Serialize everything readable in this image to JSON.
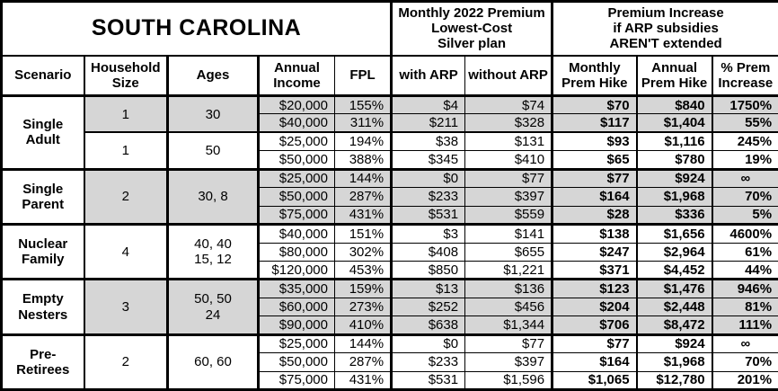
{
  "title": "SOUTH CAROLINA",
  "header_groups": {
    "premium": "Monthly 2022 Premium\nLowest-Cost\nSilver plan",
    "increase": "Premium Increase\nif ARP subsidies\nAREN'T extended"
  },
  "columns": [
    "Scenario",
    "Household\nSize",
    "Ages",
    "Annual\nIncome",
    "FPL",
    "with ARP",
    "without ARP",
    "Monthly\nPrem Hike",
    "Annual\nPrem Hike",
    "% Prem\nIncrease"
  ],
  "colors": {
    "shaded_row": "#d6d6d6",
    "border": "#000000",
    "background": "#ffffff"
  },
  "scenarios": [
    {
      "name": "Single\nAdult",
      "subgroups": [
        {
          "household_size": "1",
          "ages": "30",
          "shaded": true,
          "rows": [
            {
              "income": "$20,000",
              "fpl": "155%",
              "with_arp": "$4",
              "without_arp": "$74",
              "monthly_hike": "$70",
              "annual_hike": "$840",
              "pct_increase": "1750%"
            },
            {
              "income": "$40,000",
              "fpl": "311%",
              "with_arp": "$211",
              "without_arp": "$328",
              "monthly_hike": "$117",
              "annual_hike": "$1,404",
              "pct_increase": "55%"
            }
          ]
        },
        {
          "household_size": "1",
          "ages": "50",
          "shaded": false,
          "rows": [
            {
              "income": "$25,000",
              "fpl": "194%",
              "with_arp": "$38",
              "without_arp": "$131",
              "monthly_hike": "$93",
              "annual_hike": "$1,116",
              "pct_increase": "245%"
            },
            {
              "income": "$50,000",
              "fpl": "388%",
              "with_arp": "$345",
              "without_arp": "$410",
              "monthly_hike": "$65",
              "annual_hike": "$780",
              "pct_increase": "19%"
            }
          ]
        }
      ]
    },
    {
      "name": "Single\nParent",
      "subgroups": [
        {
          "household_size": "2",
          "ages": "30, 8",
          "shaded": true,
          "rows": [
            {
              "income": "$25,000",
              "fpl": "144%",
              "with_arp": "$0",
              "without_arp": "$77",
              "monthly_hike": "$77",
              "annual_hike": "$924",
              "pct_increase": "∞"
            },
            {
              "income": "$50,000",
              "fpl": "287%",
              "with_arp": "$233",
              "without_arp": "$397",
              "monthly_hike": "$164",
              "annual_hike": "$1,968",
              "pct_increase": "70%"
            },
            {
              "income": "$75,000",
              "fpl": "431%",
              "with_arp": "$531",
              "without_arp": "$559",
              "monthly_hike": "$28",
              "annual_hike": "$336",
              "pct_increase": "5%"
            }
          ]
        }
      ]
    },
    {
      "name": "Nuclear\nFamily",
      "subgroups": [
        {
          "household_size": "4",
          "ages": "40, 40\n15, 12",
          "shaded": false,
          "rows": [
            {
              "income": "$40,000",
              "fpl": "151%",
              "with_arp": "$3",
              "without_arp": "$141",
              "monthly_hike": "$138",
              "annual_hike": "$1,656",
              "pct_increase": "4600%"
            },
            {
              "income": "$80,000",
              "fpl": "302%",
              "with_arp": "$408",
              "without_arp": "$655",
              "monthly_hike": "$247",
              "annual_hike": "$2,964",
              "pct_increase": "61%"
            },
            {
              "income": "$120,000",
              "fpl": "453%",
              "with_arp": "$850",
              "without_arp": "$1,221",
              "monthly_hike": "$371",
              "annual_hike": "$4,452",
              "pct_increase": "44%"
            }
          ]
        }
      ]
    },
    {
      "name": "Empty\nNesters",
      "subgroups": [
        {
          "household_size": "3",
          "ages": "50, 50\n24",
          "shaded": true,
          "rows": [
            {
              "income": "$35,000",
              "fpl": "159%",
              "with_arp": "$13",
              "without_arp": "$136",
              "monthly_hike": "$123",
              "annual_hike": "$1,476",
              "pct_increase": "946%"
            },
            {
              "income": "$60,000",
              "fpl": "273%",
              "with_arp": "$252",
              "without_arp": "$456",
              "monthly_hike": "$204",
              "annual_hike": "$2,448",
              "pct_increase": "81%"
            },
            {
              "income": "$90,000",
              "fpl": "410%",
              "with_arp": "$638",
              "without_arp": "$1,344",
              "monthly_hike": "$706",
              "annual_hike": "$8,472",
              "pct_increase": "111%"
            }
          ]
        }
      ]
    },
    {
      "name": "Pre-\nRetirees",
      "subgroups": [
        {
          "household_size": "2",
          "ages": "60, 60",
          "shaded": false,
          "rows": [
            {
              "income": "$25,000",
              "fpl": "144%",
              "with_arp": "$0",
              "without_arp": "$77",
              "monthly_hike": "$77",
              "annual_hike": "$924",
              "pct_increase": "∞"
            },
            {
              "income": "$50,000",
              "fpl": "287%",
              "with_arp": "$233",
              "without_arp": "$397",
              "monthly_hike": "$164",
              "annual_hike": "$1,968",
              "pct_increase": "70%"
            },
            {
              "income": "$75,000",
              "fpl": "431%",
              "with_arp": "$531",
              "without_arp": "$1,596",
              "monthly_hike": "$1,065",
              "annual_hike": "$12,780",
              "pct_increase": "201%"
            }
          ]
        }
      ]
    }
  ]
}
